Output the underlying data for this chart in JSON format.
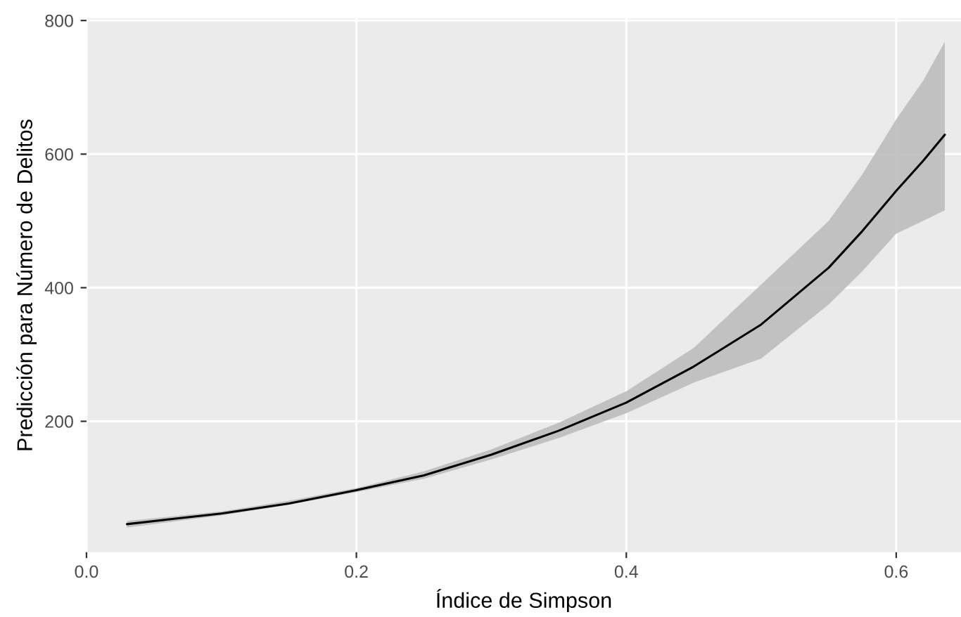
{
  "chart_data": {
    "type": "line",
    "xlabel": "Índice de Simpson",
    "ylabel": "Predicción para Número de Delitos",
    "series": [
      {
        "color": "#000000",
        "x": [
          0.03,
          0.1,
          0.15,
          0.2,
          0.25,
          0.3,
          0.35,
          0.4,
          0.45,
          0.5,
          0.55,
          0.575,
          0.6,
          0.62,
          0.636
        ],
        "values": [
          46,
          62,
          77,
          97,
          119,
          150,
          186,
          228,
          282,
          345,
          430,
          485,
          545,
          590,
          629
        ],
        "lower": [
          41,
          59,
          75,
          94,
          114,
          143,
          175,
          212,
          258,
          294,
          375,
          425,
          481,
          500,
          516
        ],
        "upper": [
          51,
          65,
          81,
          100,
          125,
          158,
          198,
          245,
          310,
          405,
          500,
          570,
          652,
          710,
          768
        ]
      }
    ],
    "xlim": [
      0.0,
      0.648
    ],
    "ylim": [
      4,
      803
    ],
    "xticks": [
      {
        "value": 0.0,
        "label": "0.0"
      },
      0.2,
      0.4,
      0.6
    ],
    "yticks": [
      200,
      400,
      600,
      800
    ],
    "grid": true,
    "legend": false,
    "marker": "none",
    "line_style": "solid"
  }
}
